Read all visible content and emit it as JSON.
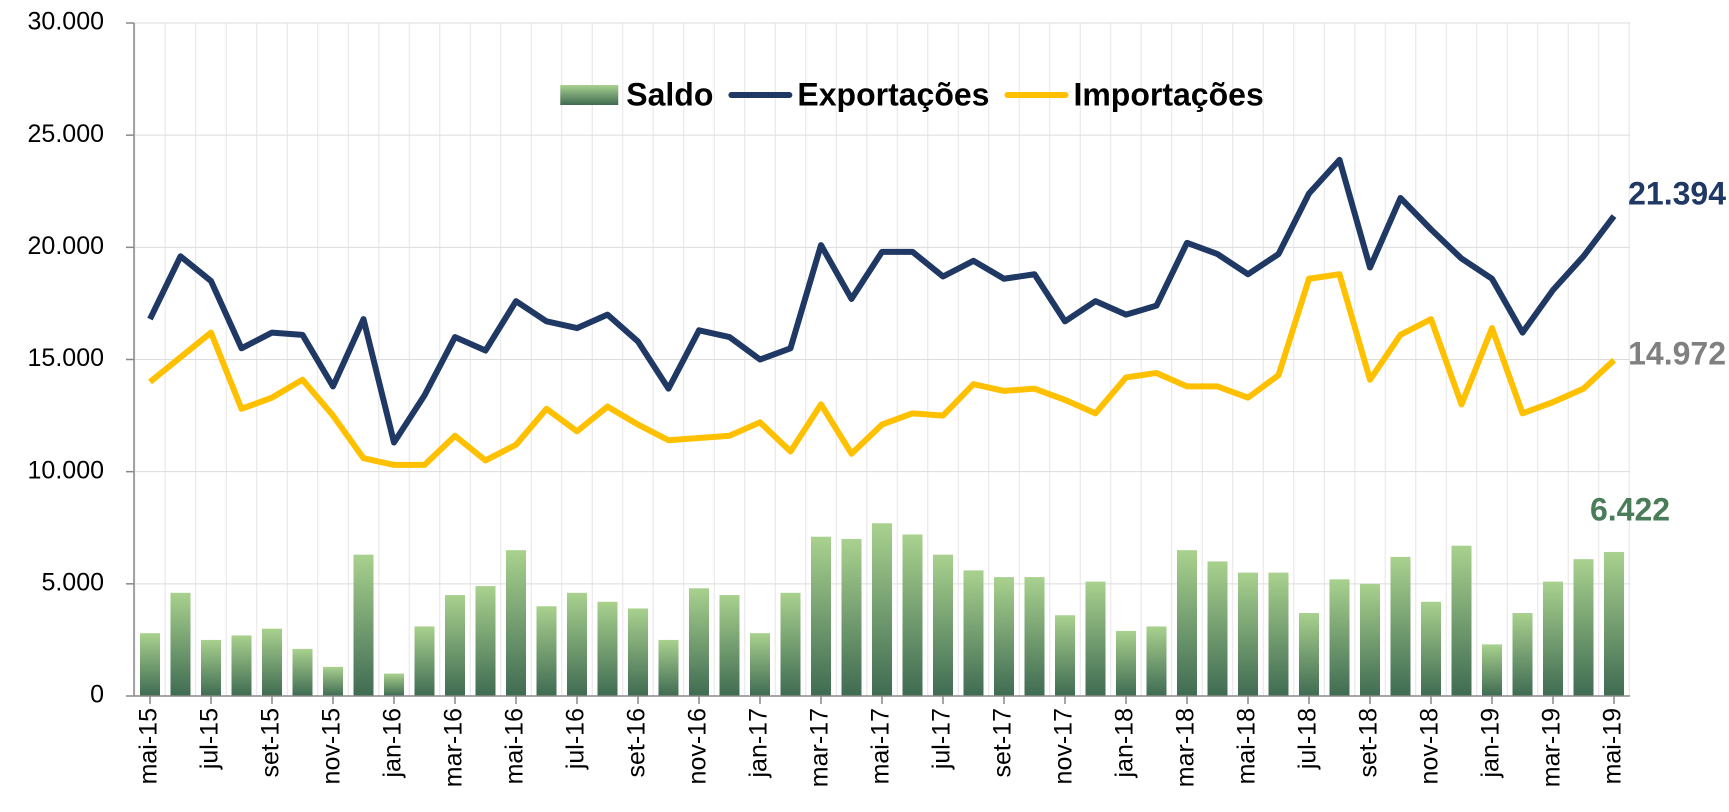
{
  "chart_data": {
    "type": "combo",
    "categories": [
      "mai-15",
      null,
      "jul-15",
      null,
      "set-15",
      null,
      "nov-15",
      null,
      "jan-16",
      null,
      "mar-16",
      null,
      "mai-16",
      null,
      "jul-16",
      null,
      "set-16",
      null,
      "nov-16",
      null,
      "jan-17",
      null,
      "mar-17",
      null,
      "mai-17",
      null,
      "jul-17",
      null,
      "set-17",
      null,
      "nov-17",
      null,
      "jan-18",
      null,
      "mar-18",
      null,
      "mai-18",
      null,
      "jul-18",
      null,
      "set-18",
      null,
      "nov-18",
      null,
      "jan-19",
      null,
      "mar-19",
      null,
      "mai-19"
    ],
    "series": [
      {
        "name": "Saldo",
        "type": "bar",
        "color": "#a9d18e",
        "color_dark": "#3f6b52",
        "label_color": "#4a7c59",
        "values": [
          2800,
          4600,
          2500,
          2700,
          3000,
          2100,
          1300,
          6300,
          1000,
          3100,
          4500,
          4900,
          6500,
          4000,
          4600,
          4200,
          3900,
          2500,
          4800,
          4500,
          2800,
          4600,
          7100,
          7000,
          7700,
          7200,
          6300,
          5600,
          5300,
          5300,
          3600,
          5100,
          2900,
          3100,
          6500,
          6000,
          5500,
          5500,
          3700,
          5200,
          5000,
          6200,
          4200,
          6700,
          2300,
          3700,
          5100,
          6100,
          6422
        ],
        "value_labels": [
          null,
          null,
          null,
          null,
          null,
          null,
          null,
          null,
          null,
          null,
          null,
          null,
          null,
          null,
          null,
          null,
          null,
          null,
          null,
          null,
          null,
          null,
          null,
          null,
          null,
          null,
          null,
          null,
          null,
          null,
          null,
          null,
          null,
          null,
          null,
          null,
          null,
          null,
          null,
          null,
          null,
          null,
          null,
          null,
          null,
          null,
          null,
          null,
          "6.422"
        ]
      },
      {
        "name": "Exportações",
        "type": "line",
        "color": "#1f3864",
        "label_color": "#1f3864",
        "values": [
          16800,
          19600,
          18500,
          15500,
          16200,
          16100,
          13800,
          16800,
          11300,
          13400,
          16000,
          15400,
          17600,
          16700,
          16400,
          17000,
          15800,
          13700,
          16300,
          16000,
          15000,
          15500,
          20100,
          17700,
          19800,
          19800,
          18700,
          19400,
          18600,
          18800,
          16700,
          17600,
          17000,
          17400,
          20200,
          19700,
          18800,
          19700,
          22400,
          23900,
          19100,
          22200,
          20800,
          19500,
          18600,
          16200,
          18100,
          19600,
          21394
        ],
        "value_labels": [
          null,
          null,
          null,
          null,
          null,
          null,
          null,
          null,
          null,
          null,
          null,
          null,
          null,
          null,
          null,
          null,
          null,
          null,
          null,
          null,
          null,
          null,
          null,
          null,
          null,
          null,
          null,
          null,
          null,
          null,
          null,
          null,
          null,
          null,
          null,
          null,
          null,
          null,
          null,
          null,
          null,
          null,
          null,
          null,
          null,
          null,
          null,
          null,
          "21.394"
        ]
      },
      {
        "name": "Importações",
        "type": "line",
        "color": "#ffc000",
        "label_color": "#808080",
        "values": [
          14000,
          15100,
          16200,
          12800,
          13300,
          14100,
          12500,
          10600,
          10300,
          10300,
          11600,
          10500,
          11200,
          12800,
          11800,
          12900,
          12100,
          11400,
          11500,
          11600,
          12200,
          10900,
          13000,
          10800,
          12100,
          12600,
          12500,
          13900,
          13600,
          13700,
          13200,
          12600,
          14200,
          14400,
          13800,
          13800,
          13300,
          14300,
          18600,
          18800,
          14100,
          16100,
          16800,
          13000,
          16400,
          12600,
          13100,
          13700,
          14972
        ],
        "value_labels": [
          null,
          null,
          null,
          null,
          null,
          null,
          null,
          null,
          null,
          null,
          null,
          null,
          null,
          null,
          null,
          null,
          null,
          null,
          null,
          null,
          null,
          null,
          null,
          null,
          null,
          null,
          null,
          null,
          null,
          null,
          null,
          null,
          null,
          null,
          null,
          null,
          null,
          null,
          null,
          null,
          null,
          null,
          null,
          null,
          null,
          null,
          null,
          null,
          "14.972"
        ]
      }
    ],
    "ylim": [
      0,
      30000
    ],
    "yticks": [
      0,
      {
        "value": 5000,
        "label": "5.000"
      },
      {
        "value": 10000,
        "label": "10.000"
      },
      {
        "value": 15000,
        "label": "15.000"
      },
      {
        "value": 20000,
        "label": "20.000"
      },
      {
        "value": 25000,
        "label": "25.000"
      },
      {
        "value": 30000,
        "label": "30.000"
      }
    ],
    "grid": true,
    "legend": "top"
  }
}
